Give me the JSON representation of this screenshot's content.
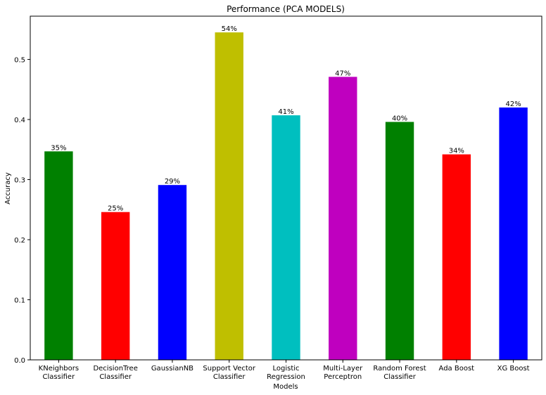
{
  "chart_data": {
    "type": "bar",
    "title": "Performance (PCA MODELS)",
    "xlabel": "Models",
    "ylabel": "Accuracy",
    "ylim": [
      0,
      0.572
    ],
    "yticks": [
      "0.0",
      "0.1",
      "0.2",
      "0.3",
      "0.4",
      "0.5"
    ],
    "grid": false,
    "categories": [
      [
        "KNeighbors",
        "Classifier"
      ],
      [
        "DecisionTree",
        "Classifier"
      ],
      [
        "GaussianNB"
      ],
      [
        "Support Vector",
        "Classifier"
      ],
      [
        "Logistic",
        "Regression"
      ],
      [
        "Multi-Layer",
        "Perceptron"
      ],
      [
        "Random Forest",
        "Classifier"
      ],
      [
        "Ada Boost"
      ],
      [
        "XG Boost"
      ]
    ],
    "values": [
      0.347,
      0.246,
      0.291,
      0.545,
      0.407,
      0.471,
      0.396,
      0.342,
      0.42
    ],
    "data_labels": [
      "35%",
      "25%",
      "29%",
      "54%",
      "41%",
      "47%",
      "40%",
      "34%",
      "42%"
    ],
    "colors": [
      "#008000",
      "#ff0000",
      "#0000ff",
      "#bfbf00",
      "#00bfbf",
      "#bf00bf",
      "#008000",
      "#ff0000",
      "#0000ff"
    ]
  }
}
